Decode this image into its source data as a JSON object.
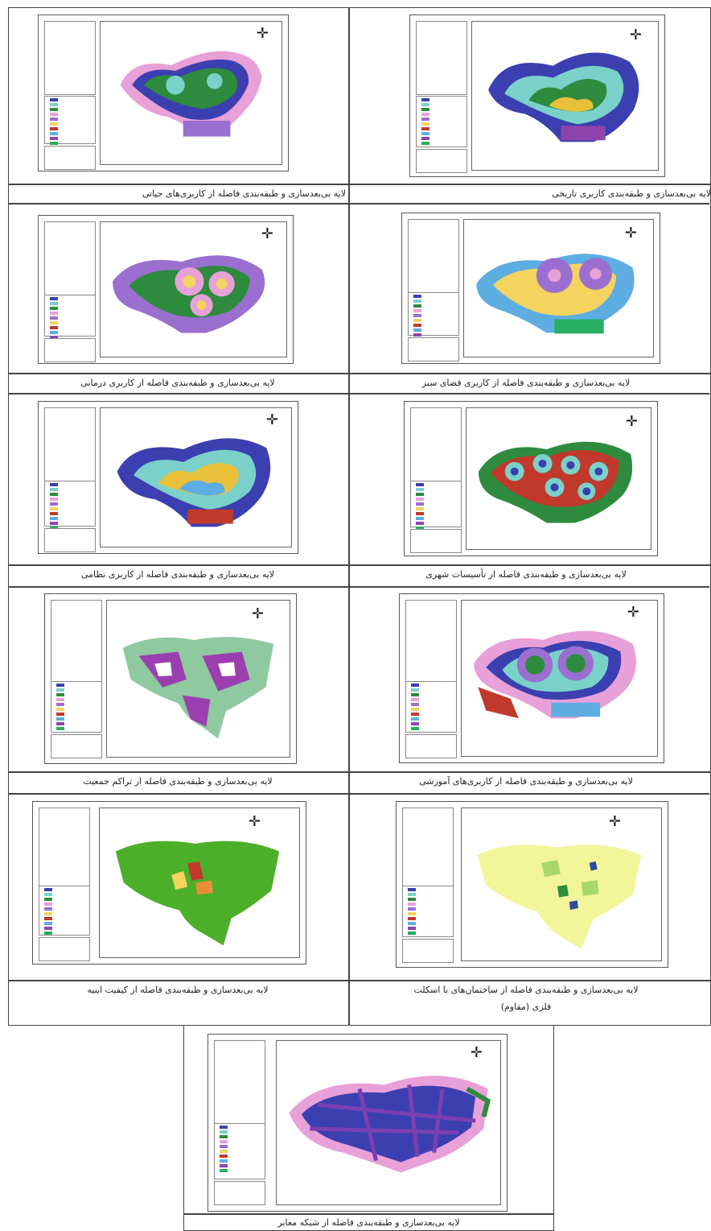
{
  "captions": {
    "vital_uses": "لایه بی‌بعدسازی و طبقه‌بندی فاصله از کاربری‌های حیاتی",
    "historic_use": "لایه بی‌بعدسازی و طبقه‌بندی کاربری تاریخی",
    "medical_use": "لایه بی‌بعدسازی و طبقه‌بندی فاصله از کاربری درمانی",
    "green_space": "لایه بی‌بعدسازی و طبقه‌بندی فاصله از کاربری فضای سبز",
    "military_use": "لایه بی‌بعدسازی و طبقه‌بندی فاصله از کاربری نظامی",
    "urban_facilities": "لایه بی‌بعدسازی و طبقه‌بندی فاصله از تأسیسات شهری",
    "population_density": "لایه بی‌بعدسازی و طبقه‌بندی فاصله از تراکم جمعیت",
    "educational_uses": "لایه بی‌بعدسازی و طبقه‌بندی فاصله از کاربری‌های آموزشی",
    "building_quality": "لایه بی‌بعدسازی و طبقه‌بندی فاصله از کیفیت ابنیه",
    "steel_buildings_1": "لایه بی‌بعدسازی و طبقه‌بندی فاصله از ساختمان‌های با اسکلت",
    "steel_buildings_2": "فلزی (مقاوم)",
    "road_network": "لایه بی‌بعدسازی و طبقه‌بندی فاصله از شبکه معابر"
  },
  "north_arrow": "✛",
  "colors": {
    "border": "#444444",
    "ring_palette": [
      "#3b3fb0",
      "#7ad1c9",
      "#2e8b3e",
      "#e8a0d8",
      "#9a6fd0",
      "#f4d35e",
      "#c0392b",
      "#5dade2",
      "#8e44ad",
      "#27ae60"
    ],
    "quality_green": "#4caf2a",
    "steel_yellow": "#f3f59a"
  }
}
